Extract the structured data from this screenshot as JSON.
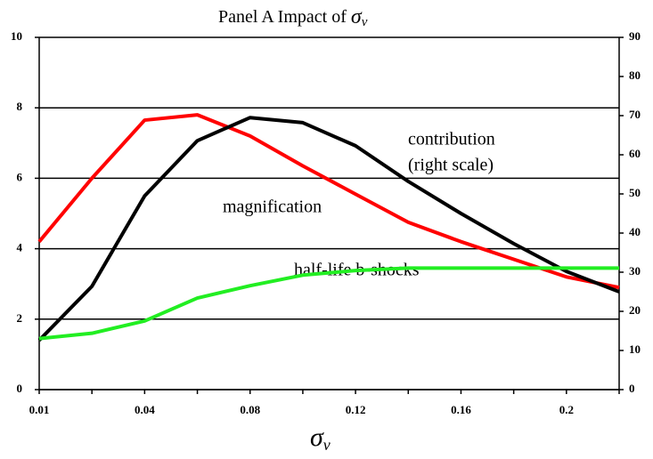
{
  "chart_data": {
    "type": "line",
    "title": "Panel A  Impact of",
    "title_symbol": {
      "base": "σ",
      "sub": "v"
    },
    "x_label": {
      "base": "σ",
      "sub": "v"
    },
    "categories": [
      "0.01",
      null,
      "0.04",
      null,
      "0.08",
      null,
      "0.12",
      null,
      "0.16",
      null,
      "0.2",
      null
    ],
    "ylim": [
      0,
      10
    ],
    "yticks": [
      0,
      2,
      4,
      6,
      8,
      10
    ],
    "y2lim": [
      0,
      90
    ],
    "y2ticks": [
      0,
      10,
      20,
      30,
      40,
      50,
      60,
      70,
      80,
      90
    ],
    "grid": true,
    "annotations": [
      "contribution",
      "(right scale)",
      "magnification",
      "half-life b-shocks"
    ],
    "series": [
      {
        "name": "magnification",
        "color": "#ff0000",
        "values": [
          4.2,
          6.0,
          7.65,
          7.8,
          7.2,
          6.35,
          5.55,
          4.75,
          4.2,
          3.7,
          3.2,
          2.9
        ]
      },
      {
        "name": "contribution",
        "color": "#000000",
        "axis": "y2",
        "values": [
          12.6,
          26.4,
          49.5,
          63.6,
          69.5,
          68.2,
          62.3,
          53.2,
          45,
          37.3,
          30.2,
          25
        ]
      },
      {
        "name": "half-life b-shocks",
        "color": "#22ee22",
        "values": [
          1.45,
          1.6,
          1.95,
          2.6,
          2.95,
          3.25,
          3.38,
          3.45,
          3.45,
          3.45,
          3.45,
          3.45
        ]
      }
    ]
  }
}
